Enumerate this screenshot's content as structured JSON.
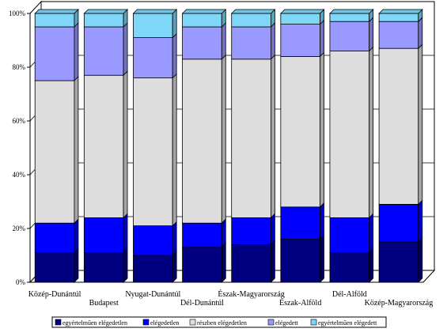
{
  "chart_data": {
    "type": "bar",
    "stacked": "percent",
    "three_d": true,
    "categories": [
      "Közép-Dunántúl",
      "Budapest",
      "Nyugat-Dunántúl",
      "Dél-Dunántúl",
      "Észak-Magyarország",
      "Észak-Alföld",
      "Dél-Alföld",
      "Közép-Magyarország"
    ],
    "series": [
      {
        "name": "egyértelműen elégedetlen",
        "color": "#000080",
        "values": [
          11,
          11,
          10,
          13,
          14,
          16,
          11,
          15
        ]
      },
      {
        "name": "elégedetlen",
        "color": "#0000ff",
        "values": [
          11,
          13,
          11,
          9,
          10,
          12,
          13,
          14
        ]
      },
      {
        "name": "részben elégedetlen",
        "color": "#dddddd",
        "values": [
          53,
          53,
          55,
          61,
          59,
          56,
          62,
          58
        ]
      },
      {
        "name": "elégedett",
        "color": "#9999ff",
        "values": [
          20,
          18,
          15,
          12,
          12,
          12,
          11,
          10
        ]
      },
      {
        "name": "egyértelműen elégedett",
        "color": "#7fd6f7",
        "values": [
          5,
          5,
          9,
          5,
          5,
          4,
          3,
          3
        ]
      }
    ],
    "y_ticks": [
      "0%",
      "20%",
      "40%",
      "60%",
      "80%",
      "100%"
    ],
    "ylim": [
      0,
      100
    ],
    "grid": true,
    "legend_position": "bottom"
  }
}
